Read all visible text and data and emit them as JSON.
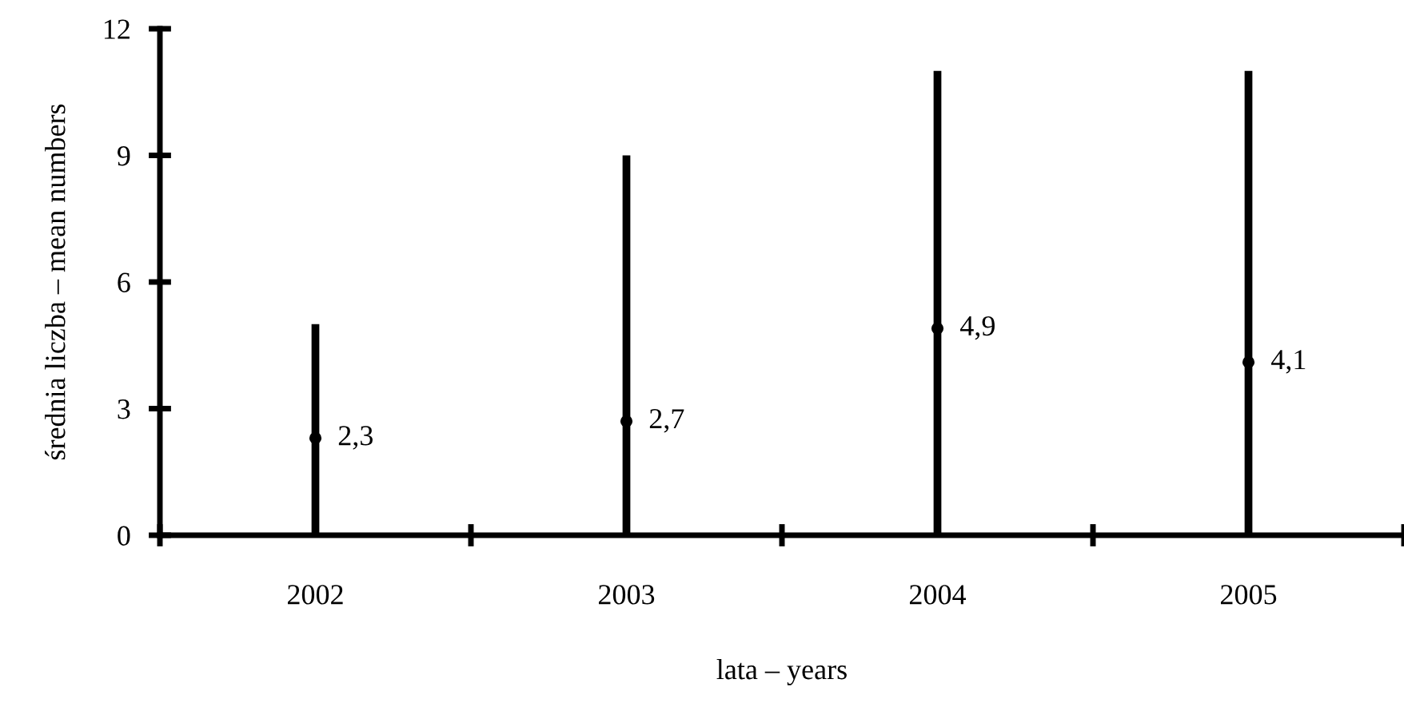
{
  "chart_data": {
    "type": "bar",
    "xlabel": "lata – years",
    "ylabel": "średnia liczba – mean numbers",
    "categories": [
      "2002",
      "2003",
      "2004",
      "2005"
    ],
    "series": [
      {
        "color": "#000000",
        "values": [
          5,
          9,
          11,
          11
        ]
      },
      {
        "type": "scatter",
        "color": "#000000",
        "marker": "circle",
        "values": [
          2.3,
          2.7,
          4.9,
          4.1
        ],
        "value_labels": [
          "2,3",
          "2,7",
          "4,9",
          "4,1"
        ]
      }
    ],
    "ylim": [
      0,
      12
    ],
    "yticks": [
      0,
      3,
      6,
      9,
      12
    ],
    "grid": false,
    "legend": false
  }
}
